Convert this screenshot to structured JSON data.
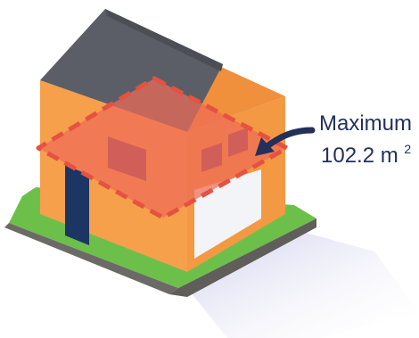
{
  "callout": {
    "label": "Maximum",
    "value": "102.2 m",
    "unit_superscript": "2"
  },
  "colors": {
    "roof": "#5b5e66",
    "roof_dark": "#4b4e55",
    "wall_front": "#f6a04c",
    "wall_side": "#f39943",
    "floor_zone": "#ef6b57",
    "floor_zone_dash": "#e55241",
    "window": "#8a3f5f",
    "door": "#1c3563",
    "garage_door": "#f3f4f7",
    "ground_green": "#6cc04a",
    "ground_gray": "#6b6a66",
    "shadow": "#d9d8f0",
    "text": "#23305a",
    "arrow": "#23305a"
  },
  "icons": {
    "arrow": "curved-arrow-icon",
    "house": "house-icon"
  }
}
